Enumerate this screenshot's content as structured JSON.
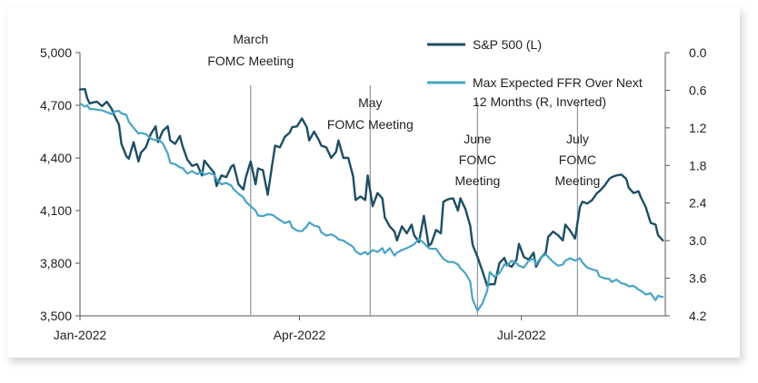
{
  "chart_data": {
    "type": "line",
    "x_ticks": [
      "Jan-2022",
      "Apr-2022",
      "Jul-2022"
    ],
    "x_tick_positions": [
      0,
      90,
      181
    ],
    "x_range": [
      0,
      240
    ],
    "y_left": {
      "ticks": [
        "5,000",
        "4,700",
        "4,400",
        "4,100",
        "3,800",
        "3,500"
      ],
      "ylim": [
        3500,
        5000
      ],
      "tick_values": [
        5000,
        4700,
        4400,
        4100,
        3800,
        3500
      ]
    },
    "y_right": {
      "ticks": [
        "0.0",
        "0.6",
        "1.2",
        "1.8",
        "2.4",
        "3.0",
        "3.6",
        "4.2"
      ],
      "ylim": [
        0.0,
        4.2
      ],
      "inverted": true,
      "tick_values": [
        0.0,
        0.6,
        1.2,
        1.8,
        2.4,
        3.0,
        3.6,
        4.2
      ]
    },
    "series": [
      {
        "name": "S&P 500 (L)",
        "axis": "left",
        "color": "#1d4e63",
        "x": [
          0,
          2,
          3,
          4,
          5,
          7,
          9,
          11,
          13,
          14,
          16,
          17,
          19,
          20,
          22,
          24,
          25,
          27,
          29,
          31,
          32,
          34,
          36,
          37,
          39,
          41,
          42,
          44,
          46,
          48,
          50,
          51,
          53,
          55,
          56,
          58,
          60,
          62,
          63,
          65,
          67,
          68,
          70,
          72,
          73,
          75,
          77,
          79,
          80,
          82,
          84,
          86,
          87,
          89,
          91,
          93,
          94,
          96,
          98,
          99,
          101,
          103,
          105,
          106,
          108,
          110,
          112,
          113,
          115,
          117,
          118,
          120,
          122,
          124,
          125,
          127,
          129,
          130,
          132,
          134,
          136,
          137,
          139,
          141,
          143,
          144,
          146,
          148,
          149,
          151,
          153,
          155,
          156,
          158,
          160,
          161,
          163,
          165,
          167,
          168,
          170,
          172,
          174,
          175,
          177,
          179,
          180,
          182,
          184,
          186,
          187,
          189,
          191,
          192,
          194,
          196,
          198,
          199,
          201,
          203,
          205,
          206,
          208,
          210,
          212,
          213,
          215,
          217,
          218,
          220,
          222,
          224,
          225,
          227,
          229,
          230,
          232,
          234,
          236,
          237,
          239
        ],
        "y": [
          4790,
          4792,
          4740,
          4710,
          4715,
          4720,
          4695,
          4720,
          4680,
          4645,
          4590,
          4480,
          4410,
          4396,
          4490,
          4380,
          4430,
          4460,
          4535,
          4580,
          4490,
          4555,
          4580,
          4500,
          4480,
          4525,
          4470,
          4390,
          4355,
          4365,
          4300,
          4385,
          4350,
          4315,
          4240,
          4300,
          4290,
          4350,
          4360,
          4250,
          4220,
          4290,
          4380,
          4250,
          4340,
          4330,
          4190,
          4380,
          4470,
          4460,
          4520,
          4545,
          4575,
          4580,
          4625,
          4575,
          4500,
          4550,
          4500,
          4470,
          4460,
          4400,
          4435,
          4500,
          4400,
          4400,
          4295,
          4160,
          4180,
          4160,
          4300,
          4125,
          4200,
          4170,
          4060,
          4010,
          3980,
          3930,
          4010,
          3970,
          4020,
          3960,
          3920,
          4070,
          3900,
          3910,
          3990,
          3970,
          4150,
          4165,
          4170,
          4100,
          4170,
          4110,
          4015,
          3905,
          3835,
          3755,
          3670,
          3680,
          3680,
          3800,
          3830,
          3795,
          3780,
          3820,
          3910,
          3835,
          3820,
          3860,
          3780,
          3830,
          3860,
          3950,
          3980,
          3960,
          3930,
          4020,
          3985,
          3940,
          4120,
          4150,
          4140,
          4160,
          4200,
          4210,
          4240,
          4280,
          4290,
          4300,
          4305,
          4280,
          4230,
          4200,
          4210,
          4175,
          4120,
          4030,
          4020,
          3960,
          3930
        ]
      },
      {
        "name": "Max Expected FFR Over Next 12 Months (R, Inverted)",
        "axis": "right",
        "color": "#4aa4c5",
        "x": [
          0,
          2,
          3,
          4,
          5,
          7,
          9,
          11,
          13,
          14,
          16,
          17,
          19,
          20,
          22,
          24,
          25,
          27,
          29,
          31,
          32,
          34,
          36,
          37,
          39,
          41,
          42,
          44,
          46,
          48,
          50,
          51,
          53,
          55,
          56,
          58,
          60,
          62,
          63,
          65,
          67,
          68,
          70,
          72,
          73,
          75,
          77,
          79,
          80,
          82,
          84,
          86,
          87,
          89,
          91,
          93,
          94,
          96,
          98,
          99,
          101,
          103,
          105,
          106,
          108,
          110,
          112,
          113,
          115,
          117,
          118,
          120,
          122,
          124,
          125,
          127,
          129,
          130,
          132,
          134,
          136,
          137,
          139,
          141,
          143,
          144,
          146,
          148,
          149,
          151,
          153,
          155,
          156,
          158,
          160,
          161,
          163,
          165,
          167,
          168,
          170,
          172,
          174,
          175,
          177,
          179,
          180,
          182,
          184,
          186,
          187,
          189,
          191,
          192,
          194,
          196,
          198,
          199,
          201,
          203,
          205,
          206,
          208,
          210,
          212,
          213,
          215,
          217,
          218,
          220,
          222,
          224,
          225,
          227,
          229,
          230,
          232,
          234,
          236,
          237,
          239
        ],
        "y": [
          0.81,
          0.86,
          0.84,
          0.9,
          0.9,
          0.91,
          0.92,
          0.95,
          0.98,
          0.94,
          0.93,
          0.97,
          0.99,
          1.1,
          1.2,
          1.29,
          1.28,
          1.3,
          1.37,
          1.4,
          1.38,
          1.45,
          1.61,
          1.76,
          1.78,
          1.83,
          1.84,
          1.93,
          1.89,
          1.94,
          1.9,
          1.95,
          1.92,
          1.95,
          2.02,
          2.1,
          2.08,
          2.12,
          2.18,
          2.25,
          2.31,
          2.38,
          2.45,
          2.52,
          2.6,
          2.61,
          2.58,
          2.59,
          2.62,
          2.67,
          2.72,
          2.69,
          2.79,
          2.84,
          2.85,
          2.77,
          2.71,
          2.76,
          2.78,
          2.87,
          2.92,
          2.9,
          2.94,
          2.98,
          3.0,
          3.05,
          3.1,
          3.17,
          3.22,
          3.18,
          3.22,
          3.15,
          3.18,
          3.12,
          3.2,
          3.12,
          3.24,
          3.19,
          3.15,
          3.12,
          3.08,
          3.06,
          2.97,
          3.04,
          3.12,
          3.13,
          3.13,
          3.24,
          3.29,
          3.34,
          3.34,
          3.38,
          3.44,
          3.52,
          3.65,
          3.94,
          4.12,
          4.0,
          3.8,
          3.5,
          3.58,
          3.52,
          3.38,
          3.4,
          3.32,
          3.36,
          3.4,
          3.43,
          3.32,
          3.29,
          3.38,
          3.27,
          3.22,
          3.26,
          3.34,
          3.4,
          3.38,
          3.32,
          3.28,
          3.32,
          3.28,
          3.35,
          3.43,
          3.46,
          3.48,
          3.57,
          3.6,
          3.61,
          3.66,
          3.62,
          3.68,
          3.7,
          3.73,
          3.72,
          3.78,
          3.8,
          3.86,
          3.84,
          3.95,
          3.88,
          3.9
        ]
      }
    ],
    "events": [
      {
        "lines": [
          "March",
          "FOMC Meeting"
        ],
        "x": 70
      },
      {
        "lines": [
          "May",
          "FOMC Meeting"
        ],
        "x": 119
      },
      {
        "lines": [
          "June",
          "FOMC",
          "Meeting"
        ],
        "x": 163
      },
      {
        "lines": [
          "July",
          "FOMC",
          "Meeting"
        ],
        "x": 204
      }
    ],
    "legend": {
      "placement": "top-right"
    },
    "grid": false
  }
}
